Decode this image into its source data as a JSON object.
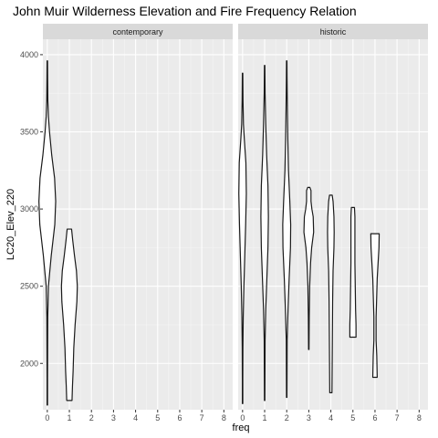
{
  "chart_data": {
    "type": "violin",
    "title": "John Muir Wilderness Elevation and Fire Frequency Relation",
    "xlabel": "freq",
    "ylabel": "LC20_Elev_220",
    "xlim": [
      -0.2,
      8.4
    ],
    "ylim": [
      1700,
      4100
    ],
    "x_ticks": [
      0,
      1,
      2,
      3,
      4,
      5,
      6,
      7,
      8
    ],
    "x_tick_labels": [
      "0",
      "1",
      "2",
      "3",
      "4",
      "5",
      "6",
      "7",
      "8"
    ],
    "y_ticks": [
      2000,
      2500,
      3000,
      3500,
      4000
    ],
    "y_tick_labels": [
      "2000",
      "2500",
      "3000",
      "3500",
      "4000"
    ],
    "legend": "none",
    "panels": [
      {
        "facet": "contemporary",
        "violins": [
          {
            "x": 0,
            "profile": [
              [
                1730,
                0.01
              ],
              [
                1900,
                0.01
              ],
              [
                2100,
                0.015
              ],
              [
                2300,
                0.02
              ],
              [
                2500,
                0.05
              ],
              [
                2700,
                0.18
              ],
              [
                2900,
                0.34
              ],
              [
                3050,
                0.38
              ],
              [
                3200,
                0.33
              ],
              [
                3350,
                0.2
              ],
              [
                3500,
                0.1
              ],
              [
                3600,
                0.05
              ],
              [
                3700,
                0.025
              ],
              [
                3850,
                0.015
              ],
              [
                3960,
                0.01
              ]
            ]
          },
          {
            "x": 1,
            "profile": [
              [
                1760,
                0.12
              ],
              [
                1850,
                0.14
              ],
              [
                1950,
                0.17
              ],
              [
                2100,
                0.2
              ],
              [
                2250,
                0.26
              ],
              [
                2400,
                0.34
              ],
              [
                2500,
                0.36
              ],
              [
                2600,
                0.32
              ],
              [
                2700,
                0.23
              ],
              [
                2800,
                0.15
              ],
              [
                2870,
                0.1
              ]
            ]
          }
        ]
      },
      {
        "facet": "historic",
        "violins": [
          {
            "x": 0,
            "profile": [
              [
                1740,
                0.01
              ],
              [
                1900,
                0.01
              ],
              [
                2100,
                0.015
              ],
              [
                2300,
                0.03
              ],
              [
                2500,
                0.06
              ],
              [
                2700,
                0.1
              ],
              [
                2900,
                0.14
              ],
              [
                3100,
                0.17
              ],
              [
                3300,
                0.15
              ],
              [
                3450,
                0.08
              ],
              [
                3550,
                0.04
              ],
              [
                3700,
                0.02
              ],
              [
                3880,
                0.01
              ]
            ]
          },
          {
            "x": 1,
            "profile": [
              [
                1760,
                0.01
              ],
              [
                1950,
                0.015
              ],
              [
                2150,
                0.02
              ],
              [
                2350,
                0.05
              ],
              [
                2550,
                0.1
              ],
              [
                2750,
                0.15
              ],
              [
                2950,
                0.17
              ],
              [
                3150,
                0.15
              ],
              [
                3350,
                0.09
              ],
              [
                3550,
                0.05
              ],
              [
                3750,
                0.02
              ],
              [
                3930,
                0.01
              ]
            ]
          },
          {
            "x": 2,
            "profile": [
              [
                1780,
                0.01
              ],
              [
                1950,
                0.015
              ],
              [
                2150,
                0.02
              ],
              [
                2350,
                0.06
              ],
              [
                2550,
                0.11
              ],
              [
                2750,
                0.17
              ],
              [
                2900,
                0.18
              ],
              [
                3050,
                0.14
              ],
              [
                3250,
                0.08
              ],
              [
                3450,
                0.05
              ],
              [
                3650,
                0.03
              ],
              [
                3850,
                0.015
              ],
              [
                3960,
                0.01
              ]
            ]
          },
          {
            "x": 3,
            "profile": [
              [
                2090,
                0.01
              ],
              [
                2300,
                0.02
              ],
              [
                2500,
                0.04
              ],
              [
                2650,
                0.08
              ],
              [
                2750,
                0.13
              ],
              [
                2850,
                0.22
              ],
              [
                2950,
                0.2
              ],
              [
                3000,
                0.14
              ],
              [
                3050,
                0.1
              ],
              [
                3120,
                0.1
              ],
              [
                3140,
                0.05
              ]
            ]
          },
          {
            "x": 4,
            "profile": [
              [
                1810,
                0.05
              ],
              [
                2000,
                0.06
              ],
              [
                2200,
                0.07
              ],
              [
                2400,
                0.08
              ],
              [
                2600,
                0.1
              ],
              [
                2750,
                0.14
              ],
              [
                2850,
                0.15
              ],
              [
                2950,
                0.14
              ],
              [
                3050,
                0.1
              ],
              [
                3090,
                0.06
              ]
            ]
          },
          {
            "x": 5,
            "profile": [
              [
                2170,
                0.14
              ],
              [
                2250,
                0.14
              ],
              [
                2350,
                0.12
              ],
              [
                2450,
                0.11
              ],
              [
                2550,
                0.1
              ],
              [
                2650,
                0.09
              ],
              [
                2750,
                0.09
              ],
              [
                2850,
                0.09
              ],
              [
                2950,
                0.09
              ],
              [
                3010,
                0.07
              ]
            ]
          },
          {
            "x": 6,
            "profile": [
              [
                1910,
                0.1
              ],
              [
                2050,
                0.08
              ],
              [
                2150,
                0.05
              ],
              [
                2300,
                0.05
              ],
              [
                2450,
                0.08
              ],
              [
                2550,
                0.1
              ],
              [
                2650,
                0.14
              ],
              [
                2750,
                0.18
              ],
              [
                2840,
                0.19
              ]
            ]
          }
        ]
      }
    ]
  }
}
